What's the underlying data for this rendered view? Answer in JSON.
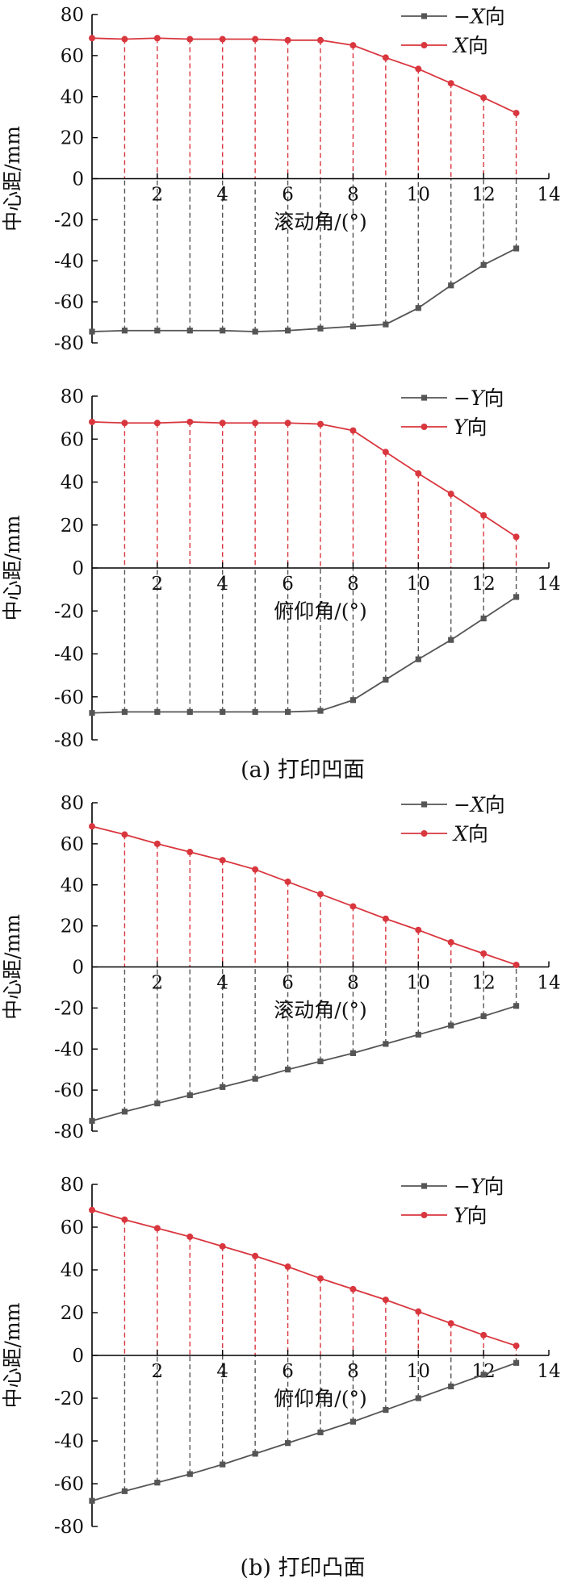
{
  "captions": {
    "a": "(a)  打印凹面",
    "b": "(b)  打印凸面"
  },
  "colors": {
    "neg_series": "#555555",
    "pos_series": "#d9363e",
    "axis": "#000000"
  },
  "chart_data": [
    {
      "type": "line",
      "ylabel": "中心距/mm",
      "xlabel": "滚动角/(°)",
      "xlim": [
        0,
        14
      ],
      "ylim": [
        -80,
        80
      ],
      "xticks": [
        2,
        4,
        6,
        8,
        10,
        12,
        14
      ],
      "yticks": [
        80,
        60,
        40,
        20,
        0,
        -20,
        -40,
        -60,
        -80
      ],
      "grid": false,
      "legend_position": "top-right",
      "dashed_drop_lines": true,
      "x": [
        0,
        1,
        2,
        3,
        4,
        5,
        6,
        7,
        8,
        9,
        10,
        11,
        12,
        13
      ],
      "series": [
        {
          "name": "−X向",
          "legend_prefix": "−",
          "legend_var": "X",
          "legend_suffix": "向",
          "color_key": "neg_series",
          "marker": "square",
          "values": [
            -74.5,
            -74,
            -74,
            -74,
            -74,
            -74.5,
            -74,
            -73,
            -72,
            -71,
            -63,
            -52,
            -42,
            -34
          ]
        },
        {
          "name": "X向",
          "legend_prefix": "",
          "legend_var": "X",
          "legend_suffix": "向",
          "color_key": "pos_series",
          "marker": "circle",
          "values": [
            68.5,
            68,
            68.5,
            68,
            68,
            68,
            67.5,
            67.5,
            65,
            59,
            53.5,
            46.5,
            39.5,
            32
          ]
        }
      ]
    },
    {
      "type": "line",
      "ylabel": "中心距/mm",
      "xlabel": "俯仰角/(°)",
      "xlim": [
        0,
        14
      ],
      "ylim": [
        -80,
        80
      ],
      "xticks": [
        2,
        4,
        6,
        8,
        10,
        12,
        14
      ],
      "yticks": [
        80,
        60,
        40,
        20,
        0,
        -20,
        -40,
        -60,
        -80
      ],
      "grid": false,
      "legend_position": "top-right",
      "dashed_drop_lines": true,
      "x": [
        0,
        1,
        2,
        3,
        4,
        5,
        6,
        7,
        8,
        9,
        10,
        11,
        12,
        13
      ],
      "series": [
        {
          "name": "−Y向",
          "legend_prefix": "−",
          "legend_var": "Y",
          "legend_suffix": "向",
          "color_key": "neg_series",
          "marker": "square",
          "values": [
            -67.5,
            -67,
            -67,
            -67,
            -67,
            -67,
            -67,
            -66.5,
            -61.5,
            -52,
            -42.5,
            -33.5,
            -23.5,
            -13.5
          ]
        },
        {
          "name": "Y向",
          "legend_prefix": "",
          "legend_var": "Y",
          "legend_suffix": "向",
          "color_key": "pos_series",
          "marker": "circle",
          "values": [
            68,
            67.5,
            67.5,
            68,
            67.5,
            67.5,
            67.5,
            67,
            64,
            54,
            44,
            34.5,
            24.5,
            14.5
          ]
        }
      ]
    },
    {
      "type": "line",
      "ylabel": "中心距/mm",
      "xlabel": "滚动角/(°)",
      "xlim": [
        0,
        14
      ],
      "ylim": [
        -80,
        80
      ],
      "xticks": [
        2,
        4,
        6,
        8,
        10,
        12,
        14
      ],
      "yticks": [
        80,
        60,
        40,
        20,
        0,
        -20,
        -40,
        -60,
        -80
      ],
      "grid": false,
      "legend_position": "top-right",
      "dashed_drop_lines": true,
      "x": [
        0,
        1,
        2,
        3,
        4,
        5,
        6,
        7,
        8,
        9,
        10,
        11,
        12,
        13
      ],
      "series": [
        {
          "name": "−X向",
          "legend_prefix": "−",
          "legend_var": "X",
          "legend_suffix": "向",
          "color_key": "neg_series",
          "marker": "square",
          "values": [
            -75,
            -70.5,
            -66.5,
            -62.5,
            -58.5,
            -54.5,
            -50,
            -46,
            -42,
            -37.5,
            -33,
            -28.5,
            -24,
            -19
          ]
        },
        {
          "name": "X向",
          "legend_prefix": "",
          "legend_var": "X",
          "legend_suffix": "向",
          "color_key": "pos_series",
          "marker": "circle",
          "values": [
            68.5,
            64.5,
            60,
            56,
            52,
            47.5,
            41.5,
            35.5,
            29.5,
            23.5,
            18,
            12,
            6.5,
            1
          ]
        }
      ]
    },
    {
      "type": "line",
      "ylabel": "中心距/mm",
      "xlabel": "俯仰角/(°)",
      "xlim": [
        0,
        14
      ],
      "ylim": [
        -80,
        80
      ],
      "xticks": [
        2,
        4,
        6,
        8,
        10,
        12,
        14
      ],
      "yticks": [
        80,
        60,
        40,
        20,
        0,
        -20,
        -40,
        -60,
        -80
      ],
      "grid": false,
      "legend_position": "top-right",
      "dashed_drop_lines": true,
      "x": [
        0,
        1,
        2,
        3,
        4,
        5,
        6,
        7,
        8,
        9,
        10,
        11,
        12,
        13
      ],
      "series": [
        {
          "name": "−Y向",
          "legend_prefix": "−",
          "legend_var": "Y",
          "legend_suffix": "向",
          "color_key": "neg_series",
          "marker": "square",
          "values": [
            -68,
            -63.5,
            -59.5,
            -55.5,
            -51,
            -46,
            -41,
            -36,
            -31,
            -25.5,
            -20,
            -14.5,
            -9,
            -3.5
          ]
        },
        {
          "name": "Y向",
          "legend_prefix": "",
          "legend_var": "Y",
          "legend_suffix": "向",
          "color_key": "pos_series",
          "marker": "circle",
          "values": [
            68,
            63.5,
            59.5,
            55.5,
            51,
            46.5,
            41.5,
            36,
            31,
            26,
            20.5,
            15,
            9.5,
            4.5
          ]
        }
      ]
    }
  ]
}
